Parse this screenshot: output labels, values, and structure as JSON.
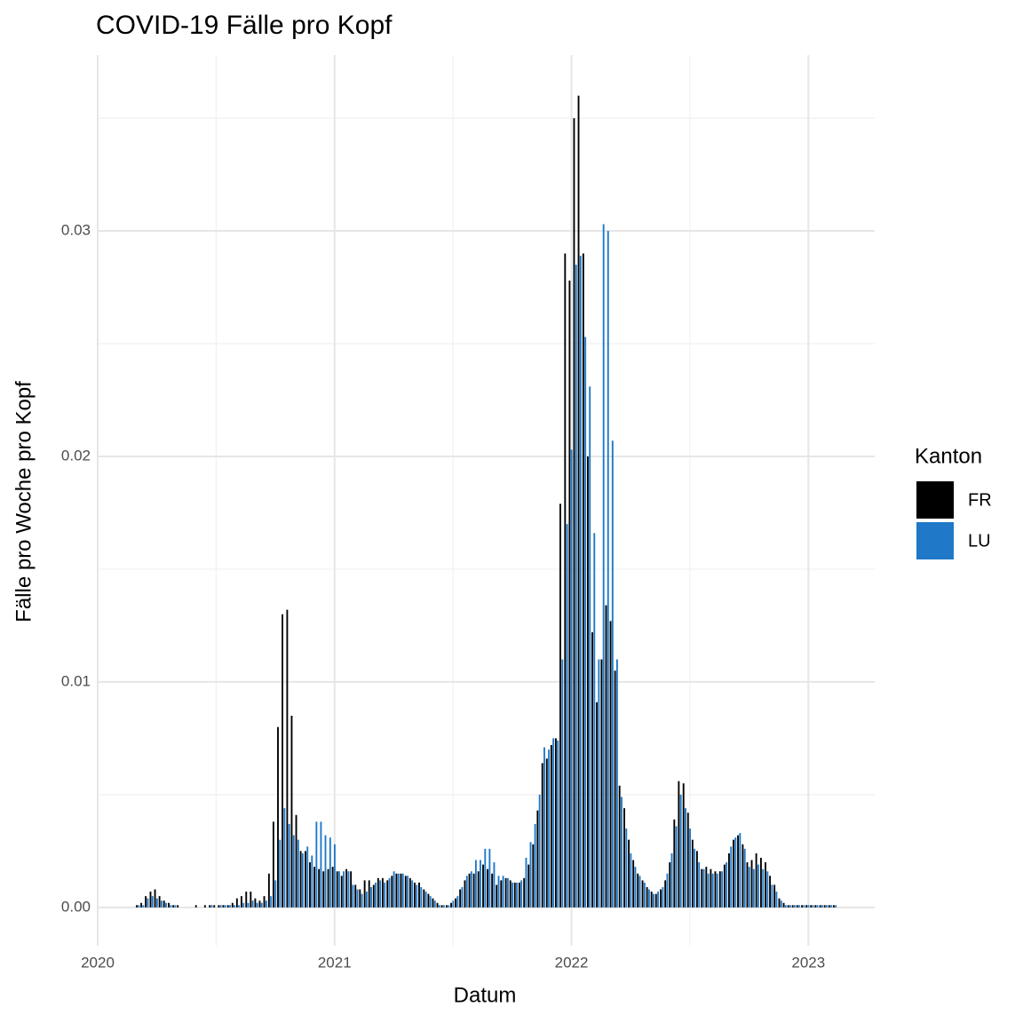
{
  "chart_data": {
    "type": "bar",
    "title": "COVID-19 Fälle pro Kopf",
    "x_label": "Datum",
    "y_label": "Fälle pro Woche pro Kopf",
    "legend_title": "Kanton",
    "legend_position": "right",
    "grid": true,
    "position": "dodge",
    "xlim": [
      2020,
      2023.28
    ],
    "ylim": [
      -0.0017,
      0.0378
    ],
    "xticks": [
      2020,
      2021,
      2022,
      2023
    ],
    "yticks": [
      {
        "value": 0,
        "label": "0.00"
      },
      0.01,
      0.02,
      0.03
    ],
    "x": [
      2020.17,
      2020.189,
      2020.208,
      2020.228,
      2020.247,
      2020.266,
      2020.285,
      2020.305,
      2020.324,
      2020.343,
      2020.362,
      2020.382,
      2020.401,
      2020.42,
      2020.439,
      2020.458,
      2020.478,
      2020.497,
      2020.516,
      2020.535,
      2020.555,
      2020.574,
      2020.593,
      2020.612,
      2020.632,
      2020.651,
      2020.67,
      2020.689,
      2020.708,
      2020.728,
      2020.747,
      2020.766,
      2020.785,
      2020.805,
      2020.824,
      2020.843,
      2020.862,
      2020.882,
      2020.901,
      2020.92,
      2020.939,
      2020.958,
      2020.978,
      2020.997,
      2021.016,
      2021.035,
      2021.055,
      2021.074,
      2021.093,
      2021.112,
      2021.132,
      2021.151,
      2021.17,
      2021.189,
      2021.208,
      2021.228,
      2021.247,
      2021.266,
      2021.285,
      2021.305,
      2021.324,
      2021.343,
      2021.362,
      2021.382,
      2021.401,
      2021.42,
      2021.439,
      2021.458,
      2021.478,
      2021.497,
      2021.516,
      2021.535,
      2021.555,
      2021.574,
      2021.593,
      2021.612,
      2021.632,
      2021.651,
      2021.67,
      2021.689,
      2021.708,
      2021.728,
      2021.747,
      2021.766,
      2021.785,
      2021.805,
      2021.824,
      2021.843,
      2021.862,
      2021.882,
      2021.901,
      2021.92,
      2021.939,
      2021.958,
      2021.978,
      2021.997,
      2022.016,
      2022.035,
      2022.055,
      2022.074,
      2022.093,
      2022.112,
      2022.132,
      2022.151,
      2022.17,
      2022.189,
      2022.208,
      2022.228,
      2022.247,
      2022.266,
      2022.285,
      2022.305,
      2022.324,
      2022.343,
      2022.362,
      2022.382,
      2022.401,
      2022.42,
      2022.439,
      2022.458,
      2022.478,
      2022.497,
      2022.516,
      2022.535,
      2022.555,
      2022.574,
      2022.593,
      2022.612,
      2022.632,
      2022.651,
      2022.67,
      2022.689,
      2022.708,
      2022.728,
      2022.747,
      2022.766,
      2022.785,
      2022.805,
      2022.824,
      2022.843,
      2022.862,
      2022.882,
      2022.901,
      2022.92,
      2022.939,
      2022.958,
      2022.978,
      2022.997,
      2023.016,
      2023.035,
      2023.055,
      2023.074,
      2023.093,
      2023.112
    ],
    "series": [
      {
        "name": "FR",
        "color": "#000000",
        "values": [
          0.0001,
          0.0002,
          0.0005,
          0.0007,
          0.0008,
          0.0005,
          0.0003,
          0.0002,
          0.0001,
          0.0001,
          0,
          0,
          0,
          0.0001,
          0,
          0.0001,
          0.0001,
          0.0001,
          0.0001,
          0.0001,
          0.0001,
          0.0002,
          0.0004,
          0.0005,
          0.0007,
          0.0007,
          0.0004,
          0.0003,
          0.0005,
          0.0015,
          0.0038,
          0.008,
          0.013,
          0.0132,
          0.0085,
          0.0041,
          0.0025,
          0.0025,
          0.002,
          0.0018,
          0.0017,
          0.0016,
          0.0017,
          0.0018,
          0.0016,
          0.0014,
          0.0017,
          0.0016,
          0.001,
          0.0008,
          0.0012,
          0.0012,
          0.001,
          0.0013,
          0.0013,
          0.0012,
          0.0014,
          0.0015,
          0.0015,
          0.0014,
          0.0013,
          0.0011,
          0.0011,
          0.0008,
          0.0006,
          0.0004,
          0.0002,
          0.0001,
          0.0001,
          0.0002,
          0.0004,
          0.0008,
          0.0012,
          0.0015,
          0.0015,
          0.0016,
          0.0019,
          0.0017,
          0.0015,
          0.001,
          0.0012,
          0.0013,
          0.0012,
          0.0011,
          0.0011,
          0.0013,
          0.0019,
          0.0028,
          0.0043,
          0.0064,
          0.0066,
          0.0072,
          0.0075,
          0.0179,
          0.029,
          0.0278,
          0.035,
          0.036,
          0.029,
          0.02,
          0.0122,
          0.0091,
          0.011,
          0.0134,
          0.0127,
          0.0105,
          0.0054,
          0.0044,
          0.003,
          0.0021,
          0.0015,
          0.0012,
          0.0009,
          0.0007,
          0.0006,
          0.0008,
          0.0012,
          0.002,
          0.0039,
          0.0056,
          0.0055,
          0.0042,
          0.003,
          0.0025,
          0.0017,
          0.0018,
          0.0017,
          0.0016,
          0.0016,
          0.0019,
          0.0024,
          0.003,
          0.0032,
          0.0028,
          0.002,
          0.0021,
          0.0024,
          0.0022,
          0.002,
          0.0014,
          0.001,
          0.0004,
          0.0002,
          0.0001,
          0.0001,
          0.0001,
          0.0001,
          0.0001,
          0.0001,
          0.0001,
          0.0001,
          0.0001,
          0.0001,
          0.0001
        ]
      },
      {
        "name": "LU",
        "color": "#1f78c8",
        "values": [
          0.0001,
          0.0001,
          0.0004,
          0.0005,
          0.0004,
          0.0003,
          0.0002,
          0.0001,
          0.0001,
          0,
          0,
          0,
          0,
          0,
          0,
          0,
          0.0001,
          0,
          0.0001,
          0.0001,
          0.0001,
          0.0001,
          0.0001,
          0.0002,
          0.0002,
          0.0003,
          0.0002,
          0.0002,
          0.0003,
          0.0005,
          0.0012,
          0.003,
          0.0044,
          0.0037,
          0.0032,
          0.003,
          0.0024,
          0.0027,
          0.0023,
          0.0038,
          0.0038,
          0.0032,
          0.0031,
          0.0028,
          0.0016,
          0.0016,
          0.0016,
          0.001,
          0.0008,
          0.0006,
          0.0007,
          0.0009,
          0.0011,
          0.0012,
          0.0011,
          0.0013,
          0.0016,
          0.0015,
          0.0015,
          0.0014,
          0.0012,
          0.001,
          0.0009,
          0.0007,
          0.0005,
          0.0003,
          0.0001,
          0.0001,
          0.0001,
          0.0003,
          0.0005,
          0.0009,
          0.0014,
          0.0016,
          0.0021,
          0.0021,
          0.0026,
          0.0026,
          0.002,
          0.0014,
          0.0014,
          0.0013,
          0.0011,
          0.0011,
          0.0012,
          0.0022,
          0.0029,
          0.0037,
          0.005,
          0.0071,
          0.007,
          0.0075,
          0.0074,
          0.011,
          0.017,
          0.0203,
          0.0285,
          0.0289,
          0.0253,
          0.0231,
          0.0166,
          0.011,
          0.0303,
          0.03,
          0.0207,
          0.011,
          0.0049,
          0.0035,
          0.0024,
          0.0018,
          0.0014,
          0.0011,
          0.0008,
          0.0006,
          0.0007,
          0.0009,
          0.0015,
          0.0024,
          0.0036,
          0.005,
          0.0044,
          0.0035,
          0.0026,
          0.002,
          0.0017,
          0.0015,
          0.0015,
          0.0015,
          0.0016,
          0.002,
          0.0027,
          0.0031,
          0.0033,
          0.0026,
          0.0018,
          0.0017,
          0.0019,
          0.0017,
          0.0016,
          0.001,
          0.0007,
          0.0003,
          0.0001,
          0.0001,
          0.0001,
          0.0001,
          0.0001,
          0.0001,
          0.0001,
          0.0001,
          0.0001,
          0.0001,
          0.0001,
          0.0001
        ]
      }
    ]
  }
}
